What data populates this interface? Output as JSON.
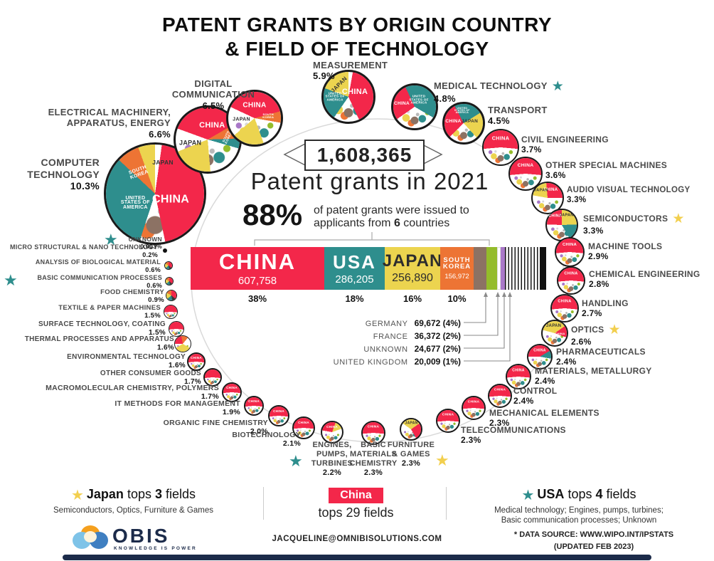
{
  "title": {
    "line1": "PATENT GRANTS BY ORIGIN COUNTRY",
    "line2": "& FIELD OF TECHNOLOGY"
  },
  "colors": {
    "china": "#f3274a",
    "usa": "#2e8e8d",
    "japan": "#ecd44f",
    "south_korea": "#ed7434",
    "germany": "#8c7264",
    "france": "#94bc2b",
    "uk": "#a978c8",
    "navy": "#1c2b4a",
    "star_yellow": "#f2cf4e",
    "star_teal": "#2e8e8d",
    "outline": "#1a1a1a"
  },
  "center": {
    "total": "1,608,365",
    "headline": "Patent grants in 2021",
    "big_pct": "88%",
    "sub_line1": "of patent grants were issued to",
    "sub2_pre": "applicants from ",
    "sub2_bold": "6",
    "sub2_post": " countries"
  },
  "bar": {
    "countries": [
      {
        "name": "CHINA",
        "value": "607,758",
        "pct": "38%",
        "color": "#f3274a",
        "text_color": "#ffffff"
      },
      {
        "name": "USA",
        "value": "286,205",
        "pct": "18%",
        "color": "#2e8e8d",
        "text_color": "#ffffff"
      },
      {
        "name": "JAPAN",
        "value": "256,890",
        "pct": "16%",
        "color": "#ecd44f",
        "text_color": "#2d2d2d"
      },
      {
        "name": "SOUTH KOREA",
        "value": "156,972",
        "pct": "10%",
        "color": "#ed7434",
        "text_color": "#ffffff"
      }
    ],
    "minor_colors": [
      "#8c7264",
      "#94bc2b",
      "#ffffff",
      "#a978c8"
    ],
    "others": [
      {
        "name": "GERMANY",
        "value": "69,672 (4%)"
      },
      {
        "name": "FRANCE",
        "value": "36,372 (2%)"
      },
      {
        "name": "UNKNOWN",
        "value": "24,677 (2%)"
      },
      {
        "name": "UNITED KINGDOM",
        "value": "20,009 (1%)"
      }
    ]
  },
  "fields": [
    {
      "label": "COMPUTER TECHNOLOGY",
      "pct": "10.3%",
      "slices": [
        "CHINA",
        "UNITED STATES OF AMERICA",
        "SOUTH KOREA",
        "JAPAN"
      ]
    },
    {
      "label": "ELECTRICAL MACHINERY, APPARATUS, ENERGY",
      "pct": "6.6%",
      "slices": [
        "CHINA",
        "JAPAN",
        "SOUTH KOREA"
      ]
    },
    {
      "label": "DIGITAL COMMUNICATION",
      "pct": "6.5%",
      "slices": [
        "CHINA",
        "JAPAN",
        "SOUTH KOREA"
      ]
    },
    {
      "label": "MEASUREMENT",
      "pct": "5.9%",
      "slices": [
        "CHINA",
        "JAPAN",
        "UNITED STATES OF AMERICA"
      ]
    },
    {
      "label": "MEDICAL TECHNOLOGY",
      "pct": "4.8%",
      "star": "teal",
      "slices": [
        "CHINA",
        "UNITED STATES OF AMERICA"
      ]
    },
    {
      "label": "TRANSPORT",
      "pct": "4.5%",
      "slices": [
        "CHINA",
        "JAPAN",
        "UNITED STATES OF AMERICA"
      ]
    },
    {
      "label": "CIVIL ENGINEERING",
      "pct": "3.7%",
      "slices": [
        "CHINA"
      ]
    },
    {
      "label": "OTHER SPECIAL MACHINES",
      "pct": "3.6%",
      "slices": [
        "CHINA"
      ]
    },
    {
      "label": "AUDIO VISUAL TECHNOLOGY",
      "pct": "3.3%",
      "slices": [
        "CHINA",
        "JAPAN"
      ]
    },
    {
      "label": "SEMICONDUCTORS",
      "pct": "3.3%",
      "star": "yellow",
      "slices": [
        "CHINA",
        "JAPAN"
      ]
    },
    {
      "label": "MACHINE TOOLS",
      "pct": "2.9%",
      "slices": [
        "CHINA"
      ]
    },
    {
      "label": "CHEMICAL ENGINEERING",
      "pct": "2.8%",
      "slices": [
        "CHINA"
      ]
    },
    {
      "label": "HANDLING",
      "pct": "2.7%",
      "slices": [
        "CHINA"
      ]
    },
    {
      "label": "OPTICS",
      "pct": "2.6%",
      "star": "yellow",
      "slices": [
        "JAPAN",
        "CHINA"
      ]
    },
    {
      "label": "PHARMACEUTICALS",
      "pct": "2.4%",
      "slices": [
        "CHINA"
      ]
    },
    {
      "label": "MATERIALS, METALLURGY",
      "pct": "2.4%",
      "slices": [
        "CHINA"
      ]
    },
    {
      "label": "CONTROL",
      "pct": "2.4%",
      "slices": [
        "CHINA"
      ]
    },
    {
      "label": "MECHANICAL ELEMENTS",
      "pct": "2.3%",
      "slices": [
        "CHINA"
      ]
    },
    {
      "label": "TELECOMMUNICATIONS",
      "pct": "2.3%",
      "slices": [
        "CHINA"
      ]
    },
    {
      "label": "FURNITURE & GAMES",
      "pct": "2.3%",
      "star": "yellow",
      "slices": [
        "JAPAN"
      ]
    },
    {
      "label": "BASIC MATERIALS CHEMISTRY",
      "pct": "2.3%",
      "slices": [
        "CHINA"
      ]
    },
    {
      "label": "ENGINES, PUMPS, TURBINES",
      "pct": "2.2%",
      "star": "teal",
      "slices": [
        "CHINA"
      ]
    },
    {
      "label": "BIOTECHNOLOGY",
      "pct": "2.1%",
      "slices": [
        "CHINA"
      ]
    },
    {
      "label": "ORGANIC FINE CHEMISTRY",
      "pct": "2.0%",
      "slices": [
        "CHINA"
      ]
    },
    {
      "label": "IT METHODS FOR MANAGEMENT",
      "pct": "1.9%",
      "slices": [
        "CHINA"
      ]
    },
    {
      "label": "MACROMOLECULAR CHEMISTRY, POLYMERS",
      "pct": "1.7%",
      "slices": [
        "CHINA"
      ]
    },
    {
      "label": "OTHER CONSUMER GOODS",
      "pct": "1.7%"
    },
    {
      "label": "ENVIRONMENTAL TECHNOLOGY",
      "pct": "1.6%",
      "slices": [
        "CHINA"
      ]
    },
    {
      "label": "THERMAL PROCESSES AND APPARATUS",
      "pct": "1.6%"
    },
    {
      "label": "SURFACE TECHNOLOGY, COATING",
      "pct": "1.5%",
      "slices": [
        "CHINA"
      ]
    },
    {
      "label": "TEXTILE & PAPER MACHINES",
      "pct": "1.5%",
      "slices": [
        "CHINA"
      ]
    },
    {
      "label": "FOOD CHEMISTRY",
      "pct": "0.9%"
    },
    {
      "label": "BASIC COMMUNICATION PROCESSES",
      "pct": "0.6%",
      "star": "teal"
    },
    {
      "label": "ANALYSIS OF BIOLOGICAL MATERIAL",
      "pct": "0.6%"
    },
    {
      "label": "MICRO STRUCTURAL & NANO TECHNOLOGY",
      "pct": "0.2%"
    },
    {
      "label": "UNKNOWN",
      "pct": "0.003%",
      "star": "teal"
    }
  ],
  "legend": {
    "japan": {
      "star": "yellow",
      "bold": "Japan",
      "mid": " tops ",
      "num": "3",
      "end": " fields",
      "sub": "Semiconductors, Optics, Furniture & Games"
    },
    "china": {
      "badge": "China",
      "pre": "tops ",
      "num": "29",
      "end": " fields"
    },
    "usa": {
      "star": "teal",
      "bold": "USA",
      "mid": " tops ",
      "num": "4",
      "end": " fields",
      "sub1": "Medical technology; Engines, pumps, turbines;",
      "sub2": "Basic communication processes; Unknown"
    }
  },
  "footer": {
    "brand": "OBIS",
    "tagline": "KNOWLEDGE IS POWER",
    "email": "JACQUELINE@OMNIBISOLUTIONS.COM",
    "source_line1": "* DATA SOURCE:  WWW.WIPO.INT/IPSTATS",
    "source_line2": "(UPDATED FEB 2023)"
  },
  "chart_data": {
    "type": "pie",
    "title": "Patent grants by origin country & field of technology",
    "total_patent_grants_2021": 1608365,
    "top6_countries_share_pct": 88,
    "countries": [
      {
        "name": "CHINA",
        "value": 607758,
        "pct": 38
      },
      {
        "name": "USA",
        "value": 286205,
        "pct": 18
      },
      {
        "name": "JAPAN",
        "value": 256890,
        "pct": 16
      },
      {
        "name": "SOUTH KOREA",
        "value": 156972,
        "pct": 10
      },
      {
        "name": "GERMANY",
        "value": 69672,
        "pct": 4
      },
      {
        "name": "FRANCE",
        "value": 36372,
        "pct": 2
      },
      {
        "name": "UNKNOWN",
        "value": 24677,
        "pct": 2
      },
      {
        "name": "UNITED KINGDOM",
        "value": 20009,
        "pct": 1
      }
    ],
    "field_shares_pct": [
      [
        "COMPUTER TECHNOLOGY",
        10.3
      ],
      [
        "ELECTRICAL MACHINERY, APPARATUS, ENERGY",
        6.6
      ],
      [
        "DIGITAL COMMUNICATION",
        6.5
      ],
      [
        "MEASUREMENT",
        5.9
      ],
      [
        "MEDICAL TECHNOLOGY",
        4.8
      ],
      [
        "TRANSPORT",
        4.5
      ],
      [
        "CIVIL ENGINEERING",
        3.7
      ],
      [
        "OTHER SPECIAL MACHINES",
        3.6
      ],
      [
        "AUDIO VISUAL TECHNOLOGY",
        3.3
      ],
      [
        "SEMICONDUCTORS",
        3.3
      ],
      [
        "MACHINE TOOLS",
        2.9
      ],
      [
        "CHEMICAL ENGINEERING",
        2.8
      ],
      [
        "HANDLING",
        2.7
      ],
      [
        "OPTICS",
        2.6
      ],
      [
        "PHARMACEUTICALS",
        2.4
      ],
      [
        "MATERIALS, METALLURGY",
        2.4
      ],
      [
        "CONTROL",
        2.4
      ],
      [
        "MECHANICAL ELEMENTS",
        2.3
      ],
      [
        "TELECOMMUNICATIONS",
        2.3
      ],
      [
        "FURNITURE & GAMES",
        2.3
      ],
      [
        "BASIC MATERIALS CHEMISTRY",
        2.3
      ],
      [
        "ENGINES, PUMPS, TURBINES",
        2.2
      ],
      [
        "BIOTECHNOLOGY",
        2.1
      ],
      [
        "ORGANIC FINE CHEMISTRY",
        2.0
      ],
      [
        "IT METHODS FOR MANAGEMENT",
        1.9
      ],
      [
        "MACROMOLECULAR CHEMISTRY, POLYMERS",
        1.7
      ],
      [
        "OTHER CONSUMER GOODS",
        1.7
      ],
      [
        "ENVIRONMENTAL TECHNOLOGY",
        1.6
      ],
      [
        "THERMAL PROCESSES AND APPARATUS",
        1.6
      ],
      [
        "SURFACE TECHNOLOGY, COATING",
        1.5
      ],
      [
        "TEXTILE & PAPER MACHINES",
        1.5
      ],
      [
        "FOOD CHEMISTRY",
        0.9
      ],
      [
        "BASIC COMMUNICATION PROCESSES",
        0.6
      ],
      [
        "ANALYSIS OF BIOLOGICAL MATERIAL",
        0.6
      ],
      [
        "MICRO STRUCTURAL & NANO TECHNOLOGY",
        0.2
      ],
      [
        "UNKNOWN",
        0.003
      ]
    ]
  }
}
